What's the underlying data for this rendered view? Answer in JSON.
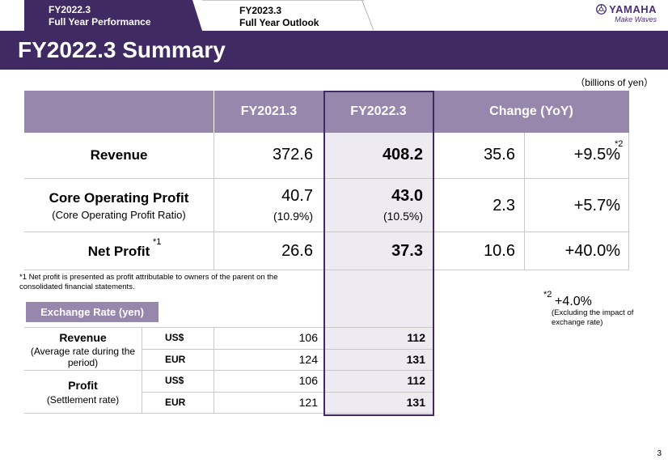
{
  "tabs": {
    "active": {
      "line1": "FY2022.3",
      "line2": "Full  Year Performance"
    },
    "inactive": {
      "line1": "FY2023.3",
      "line2": "Full  Year Outlook"
    }
  },
  "logo": {
    "wordmark": "YAMAHA",
    "tagline": "Make Waves"
  },
  "title": "FY2022.3 Summary",
  "units": "（billions of yen）",
  "table": {
    "headers": [
      "FY2021.3",
      "FY2022.3",
      "Change (YoY)"
    ],
    "rows": [
      {
        "label": "Revenue",
        "sub": "",
        "label_note": "",
        "fy21": "372.6",
        "fy21_sub": "",
        "fy22": "408.2",
        "fy22_sub": "",
        "change": "35.6",
        "pct": "+9.5%",
        "pct_note": "*2"
      },
      {
        "label": "Core Operating Profit",
        "sub": "(Core Operating Profit Ratio)",
        "label_note": "",
        "fy21": "40.7",
        "fy21_sub": "(10.9%)",
        "fy22": "43.0",
        "fy22_sub": "(10.5%)",
        "change": "2.3",
        "pct": "+5.7%",
        "pct_note": ""
      },
      {
        "label": "Net Profit",
        "sub": "",
        "label_note": "*1",
        "fy21": "26.6",
        "fy21_sub": "",
        "fy22": "37.3",
        "fy22_sub": "",
        "change": "10.6",
        "pct": "+40.0%",
        "pct_note": ""
      }
    ]
  },
  "footnote1": "*1 Net profit is presented as profit attributable to owners of the parent on the consolidated financial statements.",
  "exchange": {
    "title": "Exchange Rate (yen)",
    "groups": [
      {
        "label": "Revenue",
        "sub": "(Average rate during the period)",
        "rows": [
          {
            "cur": "US$",
            "fy21": "106",
            "fy22": "112"
          },
          {
            "cur": "EUR",
            "fy21": "124",
            "fy22": "131"
          }
        ]
      },
      {
        "label": "Profit",
        "sub": "(Settlement rate)",
        "rows": [
          {
            "cur": "US$",
            "fy21": "106",
            "fy22": "112"
          },
          {
            "cur": "EUR",
            "fy21": "121",
            "fy22": "131"
          }
        ]
      }
    ]
  },
  "note2": {
    "mark": "*2",
    "value": "+4.0%",
    "sub": "(Excluding the impact of exchange rate)"
  },
  "page_number": "3",
  "colors": {
    "brand_purple": "#3f2a63",
    "header_lavender": "#9787ad",
    "highlight": "#edeaf1"
  }
}
